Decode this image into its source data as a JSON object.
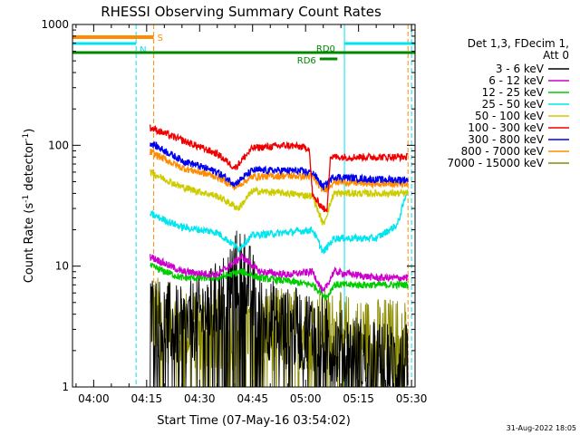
{
  "chart_data": {
    "type": "line",
    "title": "RHESSI Observing Summary Count Rates",
    "xlabel": "Start Time (07-May-16 03:54:02)",
    "ylabel": "Count Rate (s",
    "ylabel_sup": "-1",
    "ylabel_tail": " detector",
    "ylabel_close": ")",
    "y_scale": "log",
    "ylim": [
      1,
      1000
    ],
    "xlim": [
      "03:54",
      "05:31"
    ],
    "x_ticks": [
      "04:00",
      "04:15",
      "04:30",
      "04:45",
      "05:00",
      "05:15",
      "05:30"
    ],
    "y_ticks": [
      "1",
      "10",
      "100",
      "1000"
    ],
    "legend_header": [
      "Det 1,3, FDecim 1,",
      "Att 0"
    ],
    "series": [
      {
        "name": "3 - 6 keV",
        "color": "#000000",
        "start": "04:16",
        "end": "05:29",
        "points": [
          [
            "04:16",
            4
          ],
          [
            "04:25",
            3
          ],
          [
            "04:35",
            5
          ],
          [
            "04:42",
            11
          ],
          [
            "04:47",
            4
          ],
          [
            "04:55",
            3
          ],
          [
            "05:02",
            3
          ],
          [
            "05:10",
            2
          ],
          [
            "05:20",
            1.6
          ],
          [
            "05:29",
            1.5
          ]
        ]
      },
      {
        "name": "6 - 12 keV",
        "color": "#cc00cc",
        "start": "04:16",
        "end": "05:29",
        "points": [
          [
            "04:16",
            12
          ],
          [
            "04:25",
            9
          ],
          [
            "04:35",
            8.5
          ],
          [
            "04:42",
            12
          ],
          [
            "04:47",
            9
          ],
          [
            "04:55",
            8.5
          ],
          [
            "05:02",
            9
          ],
          [
            "05:05",
            6
          ],
          [
            "05:08",
            9
          ],
          [
            "05:20",
            8
          ],
          [
            "05:29",
            8
          ]
        ]
      },
      {
        "name": "12 - 25 keV",
        "color": "#00cc00",
        "start": "04:16",
        "end": "05:29",
        "points": [
          [
            "04:16",
            10
          ],
          [
            "04:25",
            8
          ],
          [
            "04:35",
            8
          ],
          [
            "04:42",
            9
          ],
          [
            "04:47",
            8
          ],
          [
            "04:55",
            7.5
          ],
          [
            "05:02",
            7
          ],
          [
            "05:06",
            5.5
          ],
          [
            "05:08",
            7
          ],
          [
            "05:20",
            7
          ],
          [
            "05:29",
            7
          ]
        ]
      },
      {
        "name": "25 - 50 keV",
        "color": "#00e5ee",
        "start": "04:16",
        "end": "05:29",
        "points": [
          [
            "04:16",
            27
          ],
          [
            "04:25",
            21
          ],
          [
            "04:35",
            19
          ],
          [
            "04:41",
            14
          ],
          [
            "04:45",
            18
          ],
          [
            "04:55",
            19
          ],
          [
            "05:02",
            20
          ],
          [
            "05:05",
            13
          ],
          [
            "05:08",
            17
          ],
          [
            "05:20",
            17
          ],
          [
            "05:26",
            22
          ],
          [
            "05:29",
            45
          ]
        ]
      },
      {
        "name": "50 - 100 keV",
        "color": "#cccc00",
        "start": "04:16",
        "end": "05:29",
        "points": [
          [
            "04:16",
            60
          ],
          [
            "04:25",
            45
          ],
          [
            "04:35",
            38
          ],
          [
            "04:41",
            30
          ],
          [
            "04:45",
            42
          ],
          [
            "04:55",
            40
          ],
          [
            "05:02",
            38
          ],
          [
            "05:05",
            22
          ],
          [
            "05:08",
            40
          ],
          [
            "05:20",
            40
          ],
          [
            "05:29",
            40
          ]
        ]
      },
      {
        "name": "100 - 300 keV",
        "color": "#ee0000",
        "start": "04:16",
        "end": "05:29",
        "points": [
          [
            "04:16",
            140
          ],
          [
            "04:25",
            110
          ],
          [
            "04:35",
            85
          ],
          [
            "04:40",
            65
          ],
          [
            "04:45",
            95
          ],
          [
            "04:55",
            100
          ],
          [
            "05:01",
            95
          ],
          [
            "05:02",
            38
          ],
          [
            "05:06",
            28
          ],
          [
            "05:07",
            80
          ],
          [
            "05:20",
            80
          ],
          [
            "05:29",
            80
          ]
        ]
      },
      {
        "name": "300 - 800 keV",
        "color": "#0000ee",
        "start": "04:16",
        "end": "05:29",
        "points": [
          [
            "04:16",
            105
          ],
          [
            "04:25",
            75
          ],
          [
            "04:35",
            60
          ],
          [
            "04:40",
            48
          ],
          [
            "04:45",
            62
          ],
          [
            "04:55",
            62
          ],
          [
            "05:02",
            60
          ],
          [
            "05:05",
            45
          ],
          [
            "05:08",
            55
          ],
          [
            "05:20",
            52
          ],
          [
            "05:29",
            52
          ]
        ]
      },
      {
        "name": "800 - 7000 keV",
        "color": "#ff8c00",
        "start": "04:16",
        "end": "05:29",
        "points": [
          [
            "04:16",
            88
          ],
          [
            "04:25",
            65
          ],
          [
            "04:35",
            55
          ],
          [
            "04:40",
            45
          ],
          [
            "04:45",
            55
          ],
          [
            "04:55",
            56
          ],
          [
            "05:02",
            55
          ],
          [
            "05:05",
            42
          ],
          [
            "05:08",
            50
          ],
          [
            "05:20",
            48
          ],
          [
            "05:29",
            48
          ]
        ]
      },
      {
        "name": "7000 - 15000 keV",
        "color": "#8b8b00",
        "start": "04:16",
        "end": "05:29",
        "points": [
          [
            "04:16",
            4
          ],
          [
            "04:25",
            3
          ],
          [
            "04:35",
            3
          ],
          [
            "04:45",
            3
          ],
          [
            "04:55",
            3
          ],
          [
            "05:05",
            3
          ],
          [
            "05:15",
            2.5
          ],
          [
            "05:29",
            2.5
          ]
        ]
      }
    ],
    "flags": [
      {
        "label": "S",
        "color": "#ff8c00",
        "start": "03:54",
        "end": "04:17"
      },
      {
        "label": "N",
        "color": "#00e5ee",
        "start": "03:54",
        "end": "04:12",
        "second_start": "05:11",
        "second_end": "05:31"
      },
      {
        "label": "RD0",
        "color": "#008800",
        "start": "03:54",
        "end": "05:31"
      },
      {
        "label": "RD6",
        "color": "#008800",
        "start": "05:04",
        "end": "05:09"
      }
    ],
    "vertical_lines": [
      {
        "time": "03:54",
        "color": "#00e5ee",
        "style": "solid"
      },
      {
        "time": "04:12",
        "color": "#00e5ee",
        "style": "dashed"
      },
      {
        "time": "04:17",
        "color": "#ff8c00",
        "style": "dashed"
      },
      {
        "time": "05:11",
        "color": "#00e5ee",
        "style": "solid"
      },
      {
        "time": "05:29",
        "color": "#ff8c00",
        "style": "dashed"
      },
      {
        "time": "05:30",
        "color": "#00e5ee",
        "style": "dashed"
      }
    ],
    "footer": "31-Aug-2022 18:05"
  }
}
